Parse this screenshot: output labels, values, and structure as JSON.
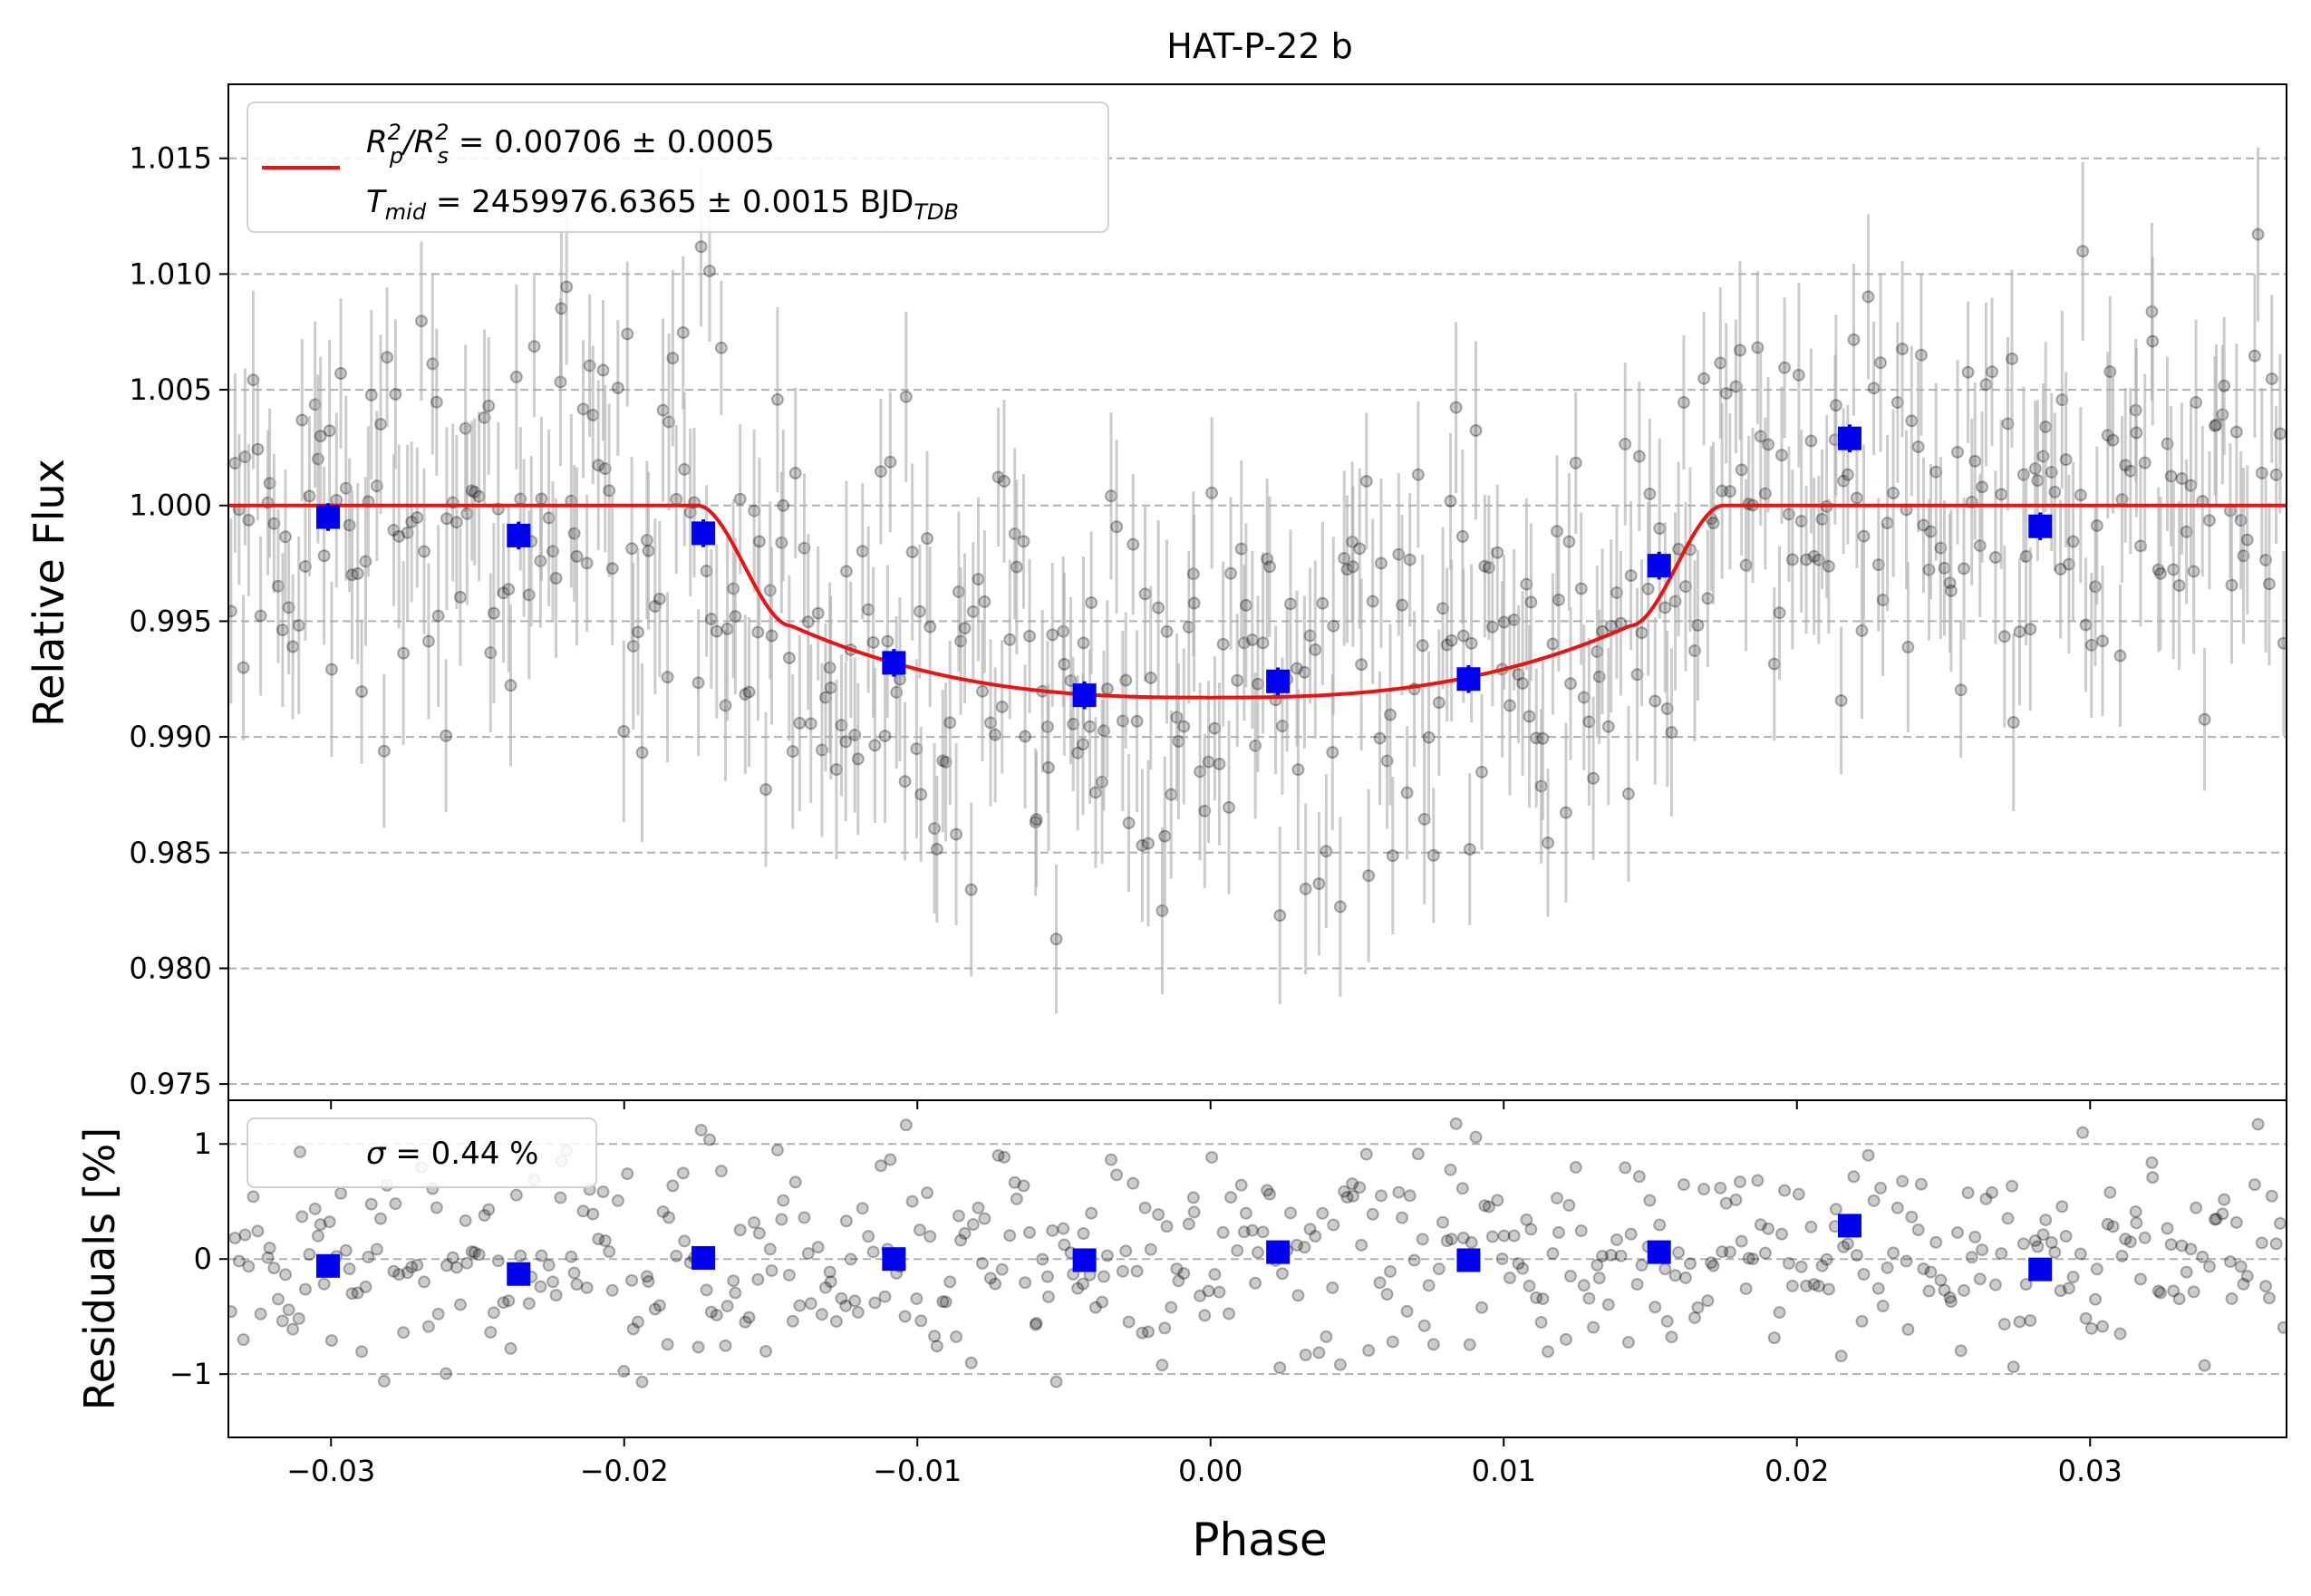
{
  "title": "HAT-P-22 b",
  "chart_data": [
    {
      "panel": "transit",
      "type": "scatter",
      "title": "HAT-P-22 b",
      "xlabel": "",
      "ylabel": "Relative Flux",
      "xlim": [
        -0.0335,
        0.0367
      ],
      "ylim": [
        0.9743,
        1.0182
      ],
      "grid": "horizontal-dashed",
      "yticks": [
        0.975,
        0.98,
        0.985,
        0.99,
        0.995,
        1.0,
        1.005,
        1.01,
        1.015
      ],
      "ytick_labels": [
        "0.975",
        "0.980",
        "0.985",
        "0.990",
        "0.995",
        "1.000",
        "1.005",
        "1.010",
        "1.015"
      ],
      "legend": {
        "placement": "top-left",
        "line1_prefix": "R",
        "line1_sub1": "p",
        "line1_sup1": "2",
        "line1_slash": "/",
        "line1_sub2": "s",
        "line1_sup2": "2",
        "line1_rest": " = 0.00706 ± 0.0005",
        "line2_prefix": "T",
        "line2_sub": "mid",
        "line2_rest": " = 2459976.6365 ± 0.0015 BJD",
        "line2_sub2": "TDB"
      },
      "colors": {
        "model": "#ee1111",
        "binned": "#0000ee",
        "raw": "#000000",
        "errorbar": "#aaaaaa"
      },
      "raw_points": {
        "count": 520,
        "x_range": [
          -0.0335,
          0.0367
        ],
        "typical_error": 0.0032
      },
      "model": {
        "type": "transit",
        "baseline": 1.0,
        "depth_min": 0.9917,
        "t1": -0.0175,
        "t2": -0.0143,
        "t3": 0.0143,
        "t4": 0.0175,
        "ingress_flux": 0.9948
      },
      "binned": {
        "x": [
          -0.0301,
          -0.0236,
          -0.0173,
          -0.0108,
          -0.0043,
          0.0023,
          0.0088,
          0.0153,
          0.0218,
          0.0283
        ],
        "y": [
          0.9995,
          0.9987,
          0.9988,
          0.9932,
          0.9918,
          0.9924,
          0.9925,
          0.9974,
          1.0029,
          0.9991
        ],
        "err": [
          0.0006,
          0.0006,
          0.0006,
          0.0006,
          0.0006,
          0.0006,
          0.0006,
          0.0006,
          0.0006,
          0.0006
        ]
      }
    },
    {
      "panel": "residuals",
      "type": "scatter",
      "xlabel": "Phase",
      "ylabel": "Residuals [%]",
      "xlim": [
        -0.0335,
        0.0367
      ],
      "ylim": [
        -1.55,
        1.38
      ],
      "grid": "horizontal-dashed",
      "xticks": [
        -0.03,
        -0.02,
        -0.01,
        0.0,
        0.01,
        0.02,
        0.03
      ],
      "xtick_labels": [
        "−0.03",
        "−0.02",
        "−0.01",
        "0.00",
        "0.01",
        "0.02",
        "0.03"
      ],
      "yticks": [
        -1,
        0,
        1
      ],
      "ytick_labels": [
        "−1",
        "0",
        "1"
      ],
      "legend": {
        "placement": "top-left",
        "symbol": "σ",
        "text": " = 0.44 %"
      },
      "raw_points": {
        "count": 520,
        "std_percent": 0.44
      },
      "binned": {
        "x": [
          -0.0301,
          -0.0236,
          -0.0173,
          -0.0108,
          -0.0043,
          0.0023,
          0.0088,
          0.0153,
          0.0218,
          0.0283
        ],
        "y": [
          -0.06,
          -0.13,
          0.01,
          0.0,
          -0.01,
          0.06,
          -0.01,
          0.06,
          0.29,
          -0.09
        ]
      }
    }
  ]
}
